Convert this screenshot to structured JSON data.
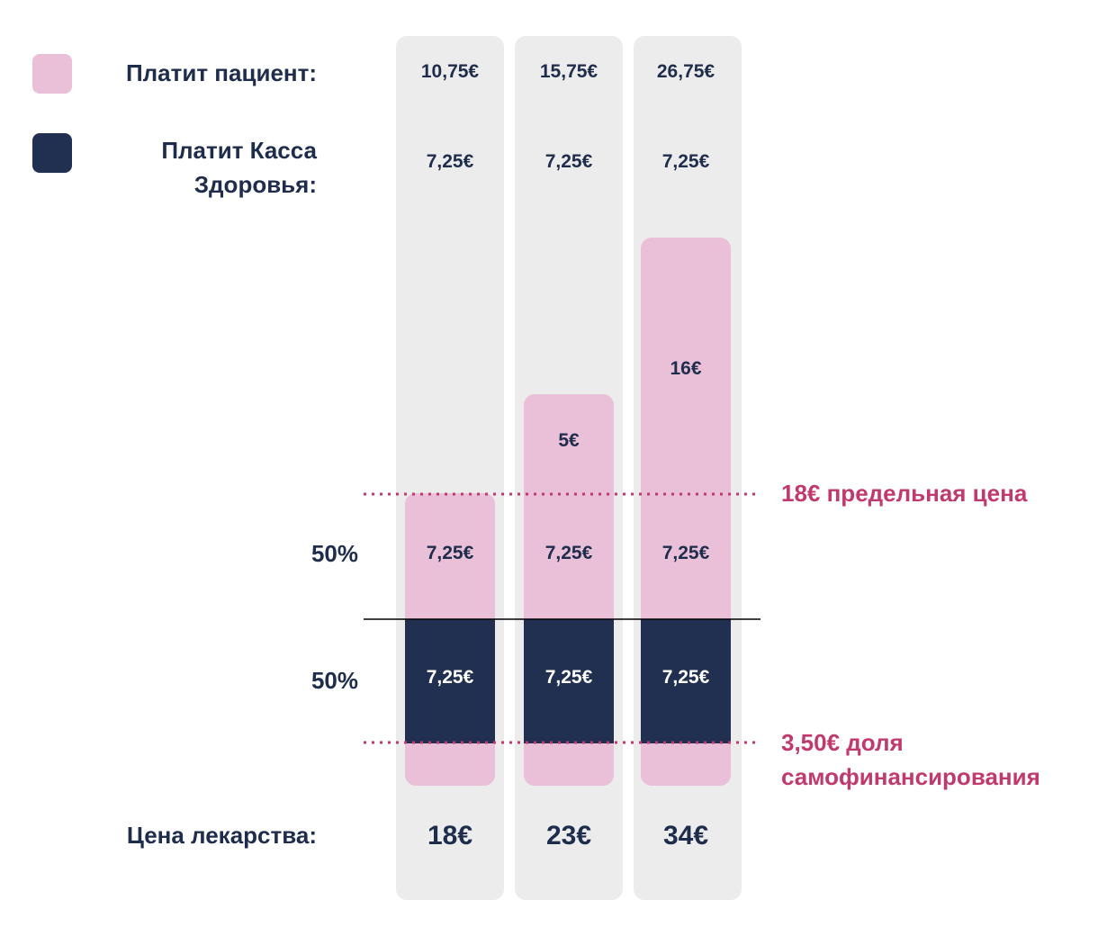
{
  "legend": [
    {
      "label": "Платит пациент:"
    },
    {
      "label": "Платит Касса Здоровья:"
    }
  ],
  "columns": [
    {
      "patient_total": "10,75€",
      "insurance_total": "7,25€",
      "patient_share": "7,25€",
      "insurance_share": "7,25€",
      "price": "18€"
    },
    {
      "patient_total": "15,75€",
      "insurance_total": "7,25€",
      "extra": "5€",
      "patient_share": "7,25€",
      "insurance_share": "7,25€",
      "price": "23€"
    },
    {
      "patient_total": "26,75€",
      "insurance_total": "7,25€",
      "extra": "16€",
      "patient_share": "7,25€",
      "insurance_share": "7,25€",
      "price": "34€"
    }
  ],
  "share_labels": [
    "50%",
    "50%"
  ],
  "price_label": "Цена лекарства:",
  "annotations": {
    "limit": "18€ предельная цена",
    "copay": "3,50€ доля самофинансирования"
  }
}
